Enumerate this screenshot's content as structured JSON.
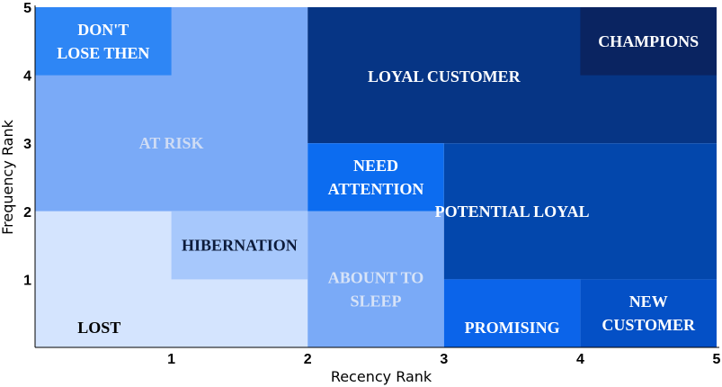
{
  "chart_data": {
    "type": "heatmap",
    "title": "",
    "xlabel": "Recency Rank",
    "ylabel": "Frequency Rank",
    "xlim": [
      0,
      5
    ],
    "ylim": [
      0,
      5
    ],
    "xticks": [
      "1",
      "2",
      "3",
      "4",
      "5"
    ],
    "yticks": [
      "1",
      "2",
      "3",
      "4",
      "5"
    ],
    "grid": false,
    "segments": [
      {
        "name": "at-risk",
        "label": [
          "AT RISK"
        ],
        "x": [
          0,
          2
        ],
        "y": [
          2,
          5
        ],
        "color": "#7aaaf7",
        "text_color": "#cfdcf4"
      },
      {
        "name": "dont-lose-them",
        "label": [
          "DON'T",
          "LOSE THEN"
        ],
        "x": [
          0,
          1
        ],
        "y": [
          4,
          5
        ],
        "color": "#2e86f5",
        "text_color": "#ffffff"
      },
      {
        "name": "loyal-customer",
        "label": [
          "LOYAL CUSTOMER"
        ],
        "x": [
          2,
          5
        ],
        "y": [
          3,
          5
        ],
        "color": "#063585",
        "text_color": "#ffffff"
      },
      {
        "name": "champions",
        "label": [
          "CHAMPIONS"
        ],
        "x": [
          4,
          5
        ],
        "y": [
          4,
          5
        ],
        "color": "#0a2461",
        "text_color": "#ffffff"
      },
      {
        "name": "lost",
        "label": [
          "LOST"
        ],
        "x": [
          0,
          2
        ],
        "y": [
          0,
          2
        ],
        "color": "#d4e4fe",
        "text_color": "#000000"
      },
      {
        "name": "hibernation",
        "label": [
          "HIBERNATION"
        ],
        "x": [
          1,
          2
        ],
        "y": [
          1,
          2
        ],
        "color": "#a7c8fc",
        "text_color": "#0d1b3a"
      },
      {
        "name": "need-attention",
        "label": [
          "NEED",
          "ATTENTION"
        ],
        "x": [
          2,
          3
        ],
        "y": [
          2,
          3
        ],
        "color": "#0c6cf0",
        "text_color": "#ffffff"
      },
      {
        "name": "about-to-sleep",
        "label": [
          "ABOUNT TO",
          "SLEEP"
        ],
        "x": [
          2,
          3
        ],
        "y": [
          0,
          2
        ],
        "color": "#7aaaf7",
        "text_color": "#d7e3f7"
      },
      {
        "name": "potential-loyal",
        "label": [
          "POTENTIAL LOYAL"
        ],
        "x": [
          3,
          5
        ],
        "y": [
          1,
          3
        ],
        "color": "#0347ac",
        "text_color": "#ffffff"
      },
      {
        "name": "promising",
        "label": [
          "PROMISING"
        ],
        "x": [
          3,
          4
        ],
        "y": [
          0,
          1
        ],
        "color": "#0b64ea",
        "text_color": "#ffffff"
      },
      {
        "name": "new-customer",
        "label": [
          "NEW",
          "CUSTOMER"
        ],
        "x": [
          4,
          5
        ],
        "y": [
          0,
          1
        ],
        "color": "#0450c6",
        "text_color": "#ffffff"
      }
    ],
    "label_anchors": {
      "at-risk": [
        1.0,
        3.0
      ],
      "dont-lose-them": [
        0.5,
        4.5
      ],
      "loyal-customer": [
        3.0,
        3.98
      ],
      "champions": [
        4.5,
        4.5
      ],
      "lost": [
        0.47,
        0.29
      ],
      "hibernation": [
        1.5,
        1.5
      ],
      "need-attention": [
        2.5,
        2.5
      ],
      "about-to-sleep": [
        2.5,
        0.85
      ],
      "potential-loyal": [
        3.5,
        2.0
      ],
      "promising": [
        3.5,
        0.29
      ],
      "new-customer": [
        4.5,
        0.5
      ]
    }
  }
}
